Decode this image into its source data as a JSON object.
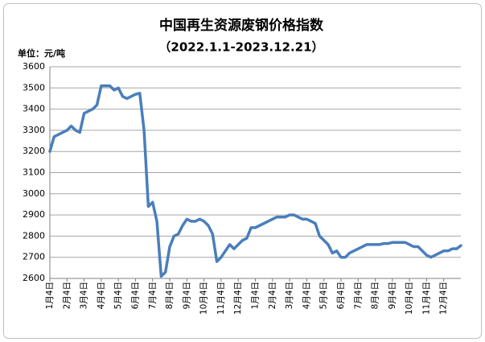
{
  "chart_data": {
    "type": "line",
    "title": "中国再生资源废钢价格指数",
    "subtitle": "（2022.1.1-2023.12.21）",
    "y_label": "单位：元/吨",
    "categories": [
      "1月4日",
      null,
      null,
      null,
      "2月4日",
      null,
      null,
      null,
      "3月4日",
      null,
      null,
      null,
      "4月4日",
      null,
      null,
      null,
      "5月4日",
      null,
      null,
      null,
      "6月4日",
      null,
      null,
      null,
      "7月4日",
      null,
      null,
      null,
      "8月4日",
      null,
      null,
      null,
      "9月4日",
      null,
      null,
      null,
      "10月4日",
      null,
      null,
      null,
      "11月4日",
      null,
      null,
      null,
      "12月4日",
      null,
      null,
      null,
      "1月4日",
      null,
      null,
      null,
      "2月4日",
      null,
      null,
      null,
      "3月4日",
      null,
      null,
      null,
      "4月4日",
      null,
      null,
      null,
      "5月4日",
      null,
      null,
      null,
      "6月4日",
      null,
      null,
      null,
      "7月4日",
      null,
      null,
      null,
      "8月4日",
      null,
      null,
      null,
      "9月4日",
      null,
      null,
      null,
      "10月4日",
      null,
      null,
      null,
      "11月4日",
      null,
      null,
      null,
      "12月4日",
      null,
      null,
      null,
      null
    ],
    "values": [
      3200,
      3270,
      3280,
      3290,
      3300,
      3320,
      3300,
      3290,
      3380,
      3390,
      3400,
      3420,
      3510,
      3510,
      3510,
      3490,
      3500,
      3460,
      3450,
      3460,
      3470,
      3475,
      3300,
      2940,
      2960,
      2870,
      2610,
      2630,
      2750,
      2800,
      2810,
      2850,
      2880,
      2870,
      2870,
      2880,
      2870,
      2850,
      2810,
      2680,
      2700,
      2730,
      2760,
      2740,
      2760,
      2780,
      2790,
      2840,
      2840,
      2850,
      2860,
      2870,
      2880,
      2890,
      2890,
      2890,
      2900,
      2900,
      2890,
      2880,
      2880,
      2870,
      2860,
      2800,
      2780,
      2760,
      2720,
      2730,
      2700,
      2700,
      2720,
      2730,
      2740,
      2750,
      2760,
      2760,
      2760,
      2760,
      2765,
      2765,
      2770,
      2770,
      2770,
      2770,
      2760,
      2750,
      2750,
      2730,
      2710,
      2700,
      2710,
      2720,
      2730,
      2730,
      2740,
      2740,
      2755
    ],
    "color": "#4a7ebb",
    "ylim": [
      2600,
      3600
    ],
    "yticks": [
      2600,
      2700,
      2800,
      2900,
      3000,
      3100,
      3200,
      3300,
      3400,
      3500,
      3600
    ],
    "grid": true
  }
}
